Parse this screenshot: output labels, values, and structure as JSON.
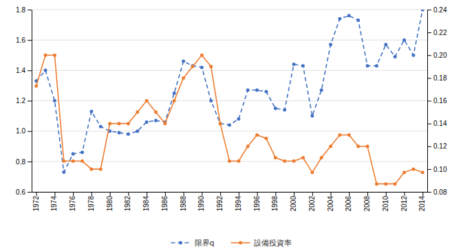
{
  "chart_data": {
    "type": "line",
    "x": [
      1972,
      1973,
      1974,
      1975,
      1976,
      1977,
      1978,
      1979,
      1980,
      1981,
      1982,
      1983,
      1984,
      1985,
      1986,
      1987,
      1988,
      1989,
      1990,
      1991,
      1992,
      1993,
      1994,
      1995,
      1996,
      1997,
      1998,
      1999,
      2000,
      2001,
      2002,
      2003,
      2004,
      2005,
      2006,
      2007,
      2008,
      2009,
      2010,
      2011,
      2012,
      2013,
      2014
    ],
    "xlim": [
      1971.5,
      2014.5
    ],
    "xticks": [
      1972,
      1974,
      1976,
      1978,
      1980,
      1982,
      1984,
      1986,
      1988,
      1990,
      1992,
      1994,
      1996,
      1998,
      2000,
      2002,
      2004,
      2006,
      2008,
      2010,
      2012,
      2014
    ],
    "ylim": [
      0.6,
      1.8
    ],
    "yticks": [
      0.6,
      0.8,
      {
        "value": 1.0,
        "label": "1.0"
      },
      1.2,
      1.4,
      1.6,
      1.8
    ],
    "y2lim": [
      0.08,
      0.24
    ],
    "y2ticks": [
      0.08,
      {
        "value": 0.1,
        "label": "0.10"
      },
      0.12,
      0.14,
      0.16,
      0.18,
      {
        "value": 0.2,
        "label": "0.20"
      },
      0.22,
      0.24
    ],
    "grid": true,
    "legend": "bottom",
    "series": [
      {
        "name": "限界q",
        "color": "#4472C4",
        "line_style": "dashed",
        "marker": "circle",
        "values": [
          1.33,
          1.4,
          1.2,
          0.73,
          0.85,
          0.86,
          1.13,
          1.03,
          1.0,
          0.99,
          0.98,
          1.0,
          1.06,
          1.07,
          1.06,
          1.25,
          1.46,
          1.43,
          1.42,
          1.2,
          1.05,
          1.04,
          1.08,
          1.27,
          1.27,
          1.26,
          1.15,
          1.14,
          1.44,
          1.43,
          1.1,
          1.27,
          1.57,
          1.74,
          1.76,
          1.73,
          1.43,
          1.43,
          1.57,
          1.49,
          1.6,
          1.5,
          1.8
        ]
      },
      {
        "name": "設備投資率",
        "color": "#ED7D31",
        "line_style": "solid",
        "marker": "circle",
        "axis": "y2",
        "values": [
          0.173,
          0.2,
          0.2,
          0.107,
          0.107,
          0.107,
          0.1,
          0.1,
          0.14,
          0.14,
          0.14,
          0.15,
          0.16,
          0.15,
          0.14,
          0.16,
          0.18,
          0.19,
          0.2,
          0.19,
          0.14,
          0.107,
          0.107,
          0.12,
          0.13,
          0.127,
          0.11,
          0.107,
          0.107,
          0.11,
          0.097,
          0.11,
          0.12,
          0.13,
          0.13,
          0.12,
          0.12,
          0.087,
          0.087,
          0.087,
          0.097,
          0.1,
          0.097
        ]
      }
    ]
  }
}
